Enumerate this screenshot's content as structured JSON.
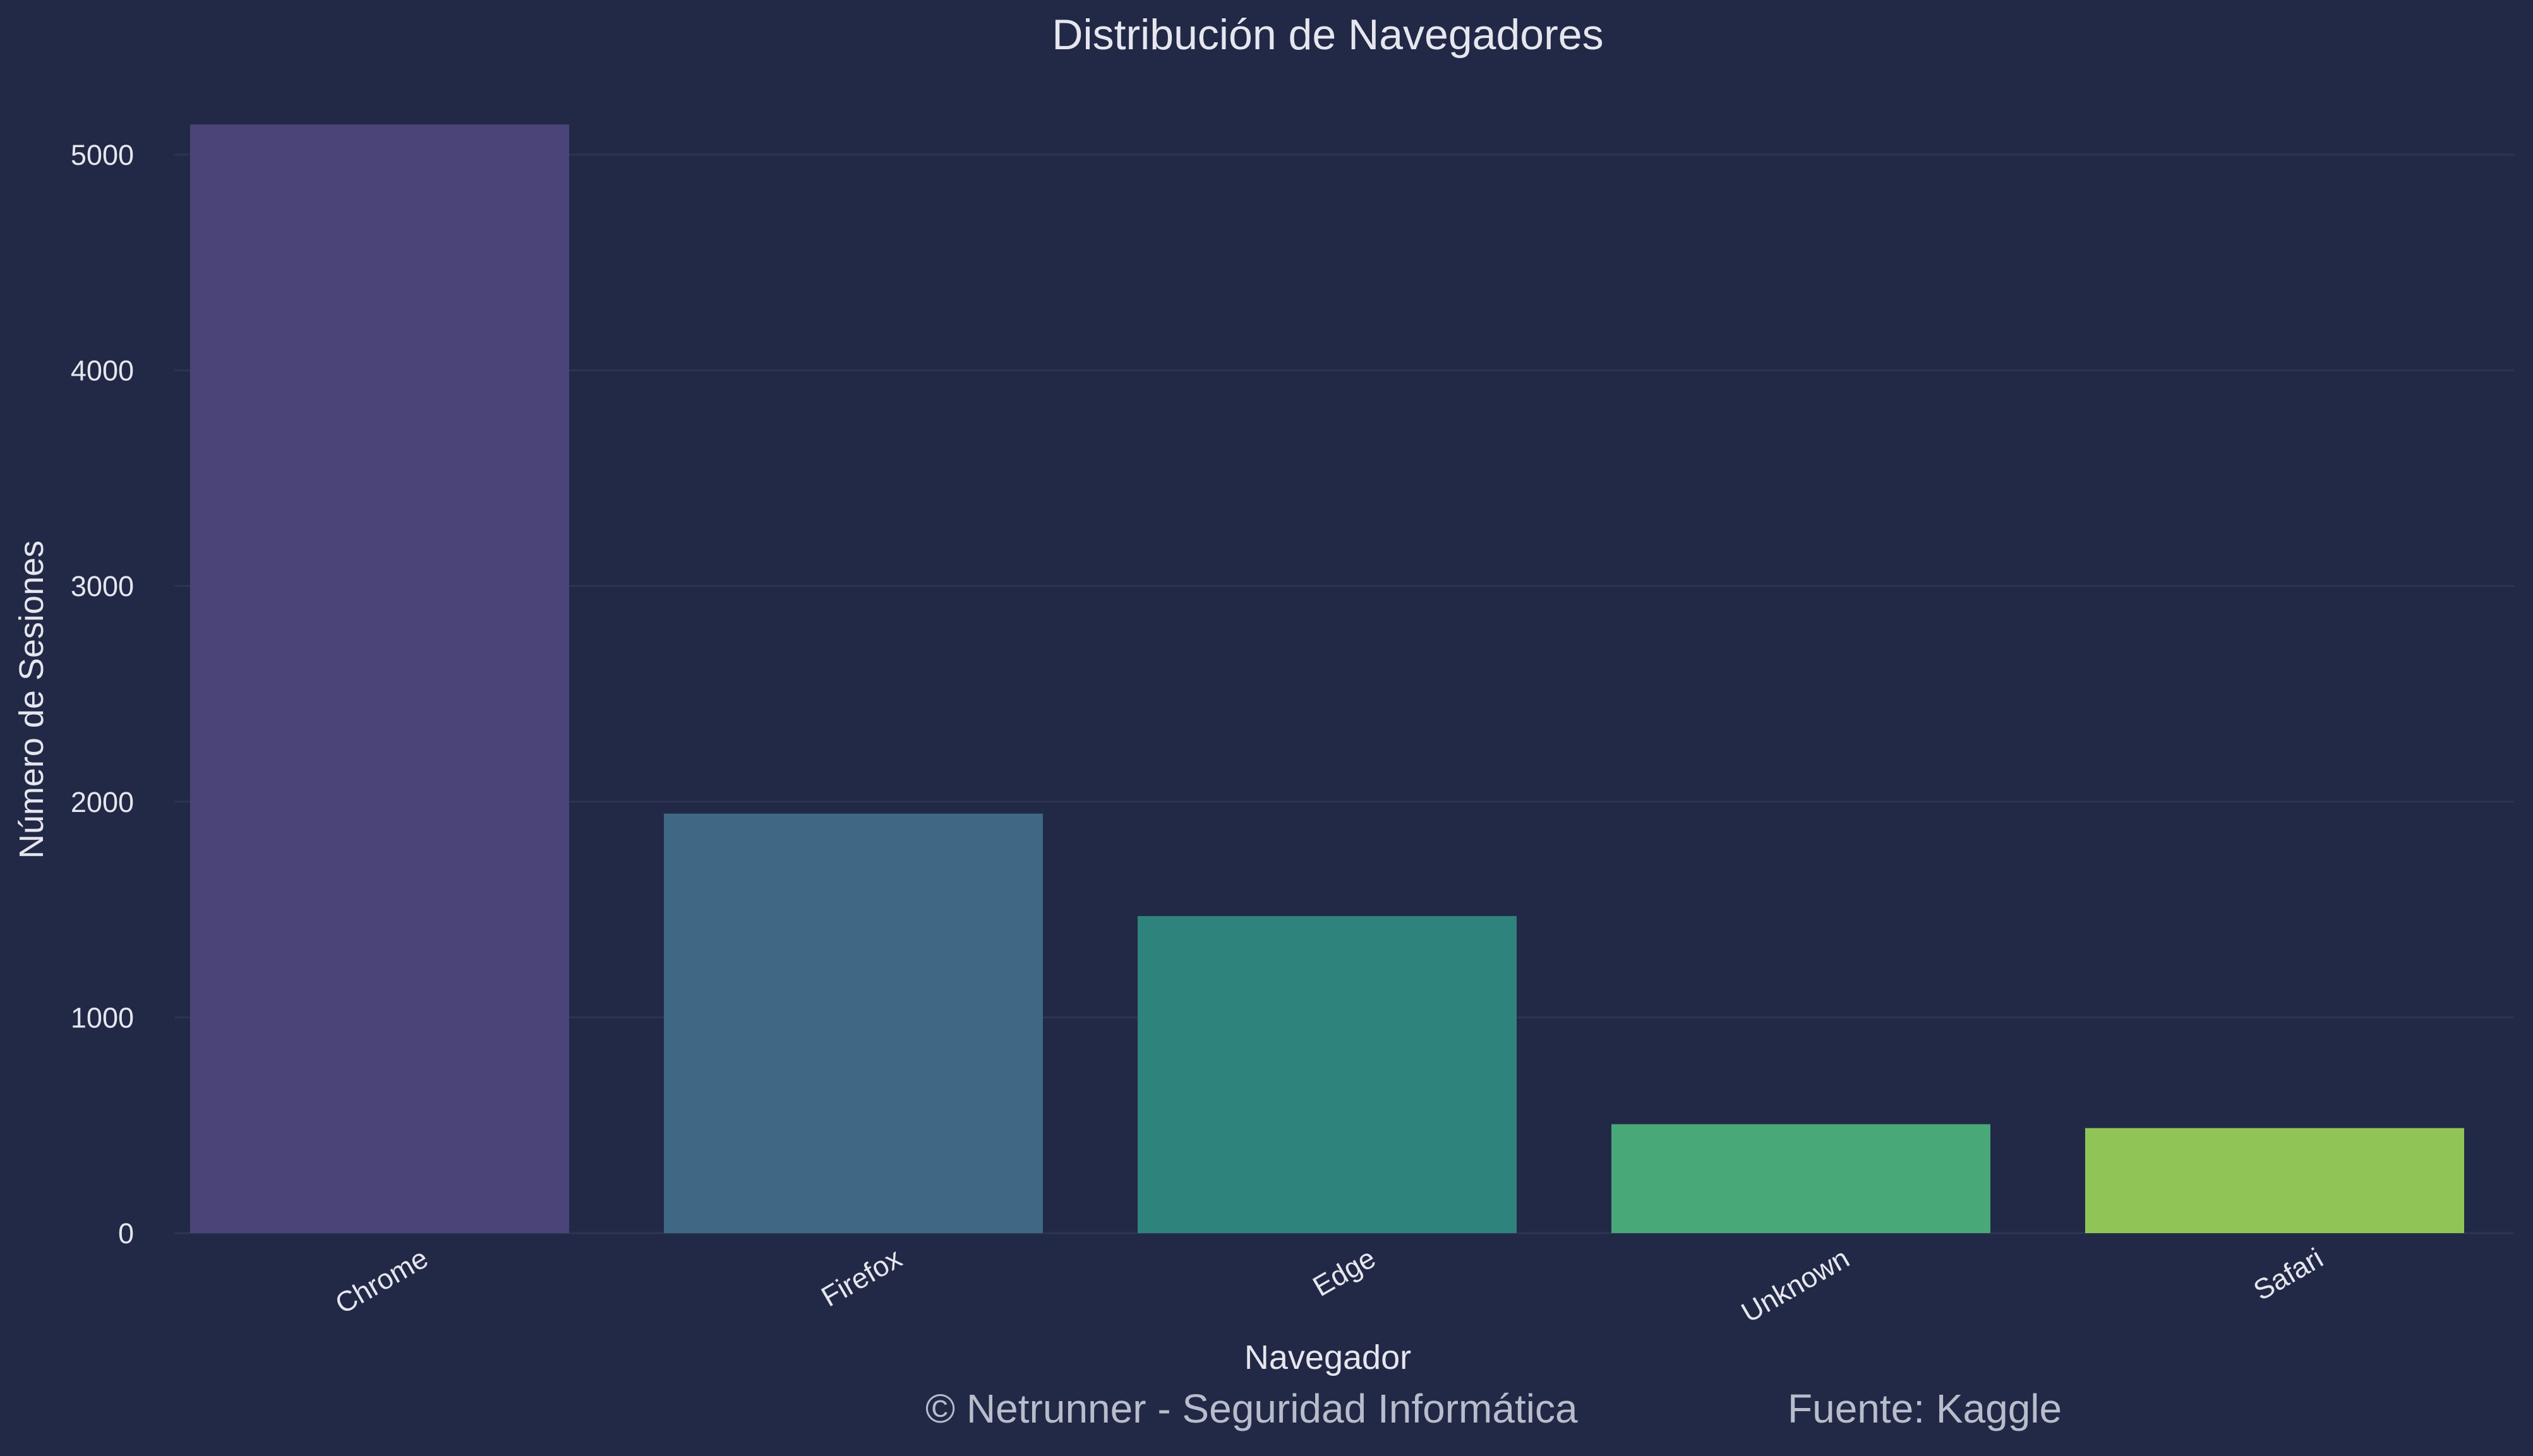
{
  "chart_data": {
    "type": "bar",
    "title": "Distribución de Navegadores",
    "xlabel": "Navegador",
    "ylabel": "Número de Sesiones",
    "categories": [
      "Chrome",
      "Firefox",
      "Edge",
      "Unknown",
      "Safari"
    ],
    "values": [
      5140,
      1945,
      1470,
      505,
      487
    ],
    "ylim": [
      0,
      5400
    ],
    "yticks": [
      0,
      1000,
      2000,
      3000,
      4000,
      5000
    ],
    "grid": true,
    "legend": "none",
    "bar_colors": [
      "#4b4479",
      "#3f6885",
      "#2e847d",
      "#48a877",
      "#90c457"
    ]
  },
  "footer": {
    "credit": "© Netrunner - Seguridad Informática",
    "source": "Fuente: Kaggle"
  },
  "colors": {
    "background": "#212946",
    "grid": "#2b3552",
    "text": "#e6e6ee",
    "footer_text": "#b8bccb"
  }
}
